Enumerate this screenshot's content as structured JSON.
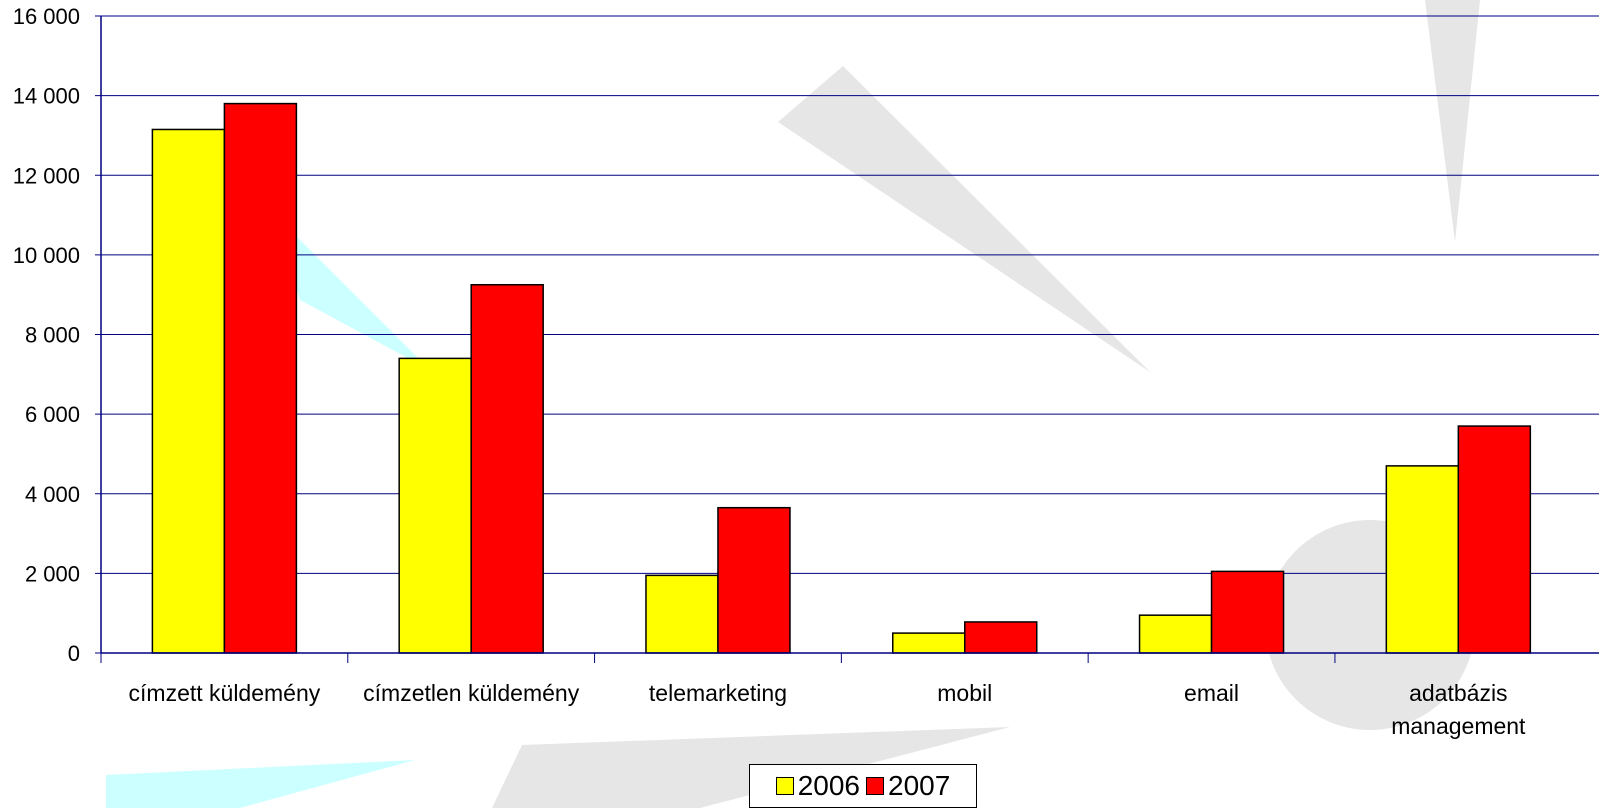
{
  "chart_data": {
    "type": "bar",
    "categories": [
      "címzett küldemény",
      "címzetlen küldemény",
      "telemarketing",
      "mobil",
      "email",
      "adatbázis management"
    ],
    "category_label_lines": [
      [
        "címzett küldemény"
      ],
      [
        "címzetlen küldemény"
      ],
      [
        "telemarketing"
      ],
      [
        "mobil"
      ],
      [
        "email"
      ],
      [
        "adatbázis",
        "management"
      ]
    ],
    "series": [
      {
        "name": "2006",
        "color": "#ffff00",
        "values": [
          13150,
          7400,
          1950,
          500,
          950,
          4700
        ]
      },
      {
        "name": "2007",
        "color": "#ff0000",
        "values": [
          13800,
          9250,
          3650,
          780,
          2050,
          5700
        ]
      }
    ],
    "ylim": [
      0,
      16000
    ],
    "yticks": [
      0,
      2000,
      4000,
      6000,
      8000,
      10000,
      12000,
      14000,
      16000
    ],
    "ytick_labels": [
      "0",
      "2 000",
      "4 000",
      "6 000",
      "8 000",
      "10 000",
      "12 000",
      "14 000",
      "16 000"
    ],
    "grid": true,
    "gridline_color": "#000080",
    "legend_position": "bottom"
  }
}
